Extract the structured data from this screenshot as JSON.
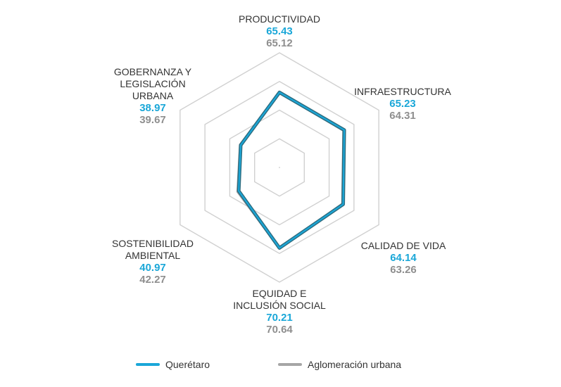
{
  "chart_data": {
    "type": "radar",
    "axes": [
      {
        "name": "PRODUCTIVIDAD",
        "name_lines": [
          "PRODUCTIVIDAD"
        ],
        "queretaro": 65.43,
        "aglomeracion": 65.12
      },
      {
        "name": "INFRAESTRUCTURA",
        "name_lines": [
          "INFRAESTRUCTURA"
        ],
        "queretaro": 65.23,
        "aglomeracion": 64.31
      },
      {
        "name": "CALIDAD DE VIDA",
        "name_lines": [
          "CALIDAD DE VIDA"
        ],
        "queretaro": 64.14,
        "aglomeracion": 63.26
      },
      {
        "name": "EQUIDAD E INCLUSIÓN SOCIAL",
        "name_lines": [
          "EQUIDAD E",
          "INCLUSIÓN SOCIAL"
        ],
        "queretaro": 70.21,
        "aglomeracion": 70.64
      },
      {
        "name": "SOSTENIBILIDAD AMBIENTAL",
        "name_lines": [
          "SOSTENIBILIDAD",
          "AMBIENTAL"
        ],
        "queretaro": 40.97,
        "aglomeracion": 42.27
      },
      {
        "name": "GOBERNANZA Y LEGISLACIÓN URBANA",
        "name_lines": [
          "GOBERNANZA Y",
          "LEGISLACIÓN",
          "URBANA"
        ],
        "queretaro": 38.97,
        "aglomeracion": 39.67
      }
    ],
    "series": [
      {
        "name": "Querétaro",
        "key": "queretaro",
        "color": "#1aa7d8",
        "outline": "#2d6b7e"
      },
      {
        "name": "Aglomeración urbana",
        "key": "aglomeracion",
        "color": "#a6a6a6"
      }
    ],
    "rlim": [
      0,
      100
    ],
    "grid": true,
    "legend_position": "bottom"
  }
}
